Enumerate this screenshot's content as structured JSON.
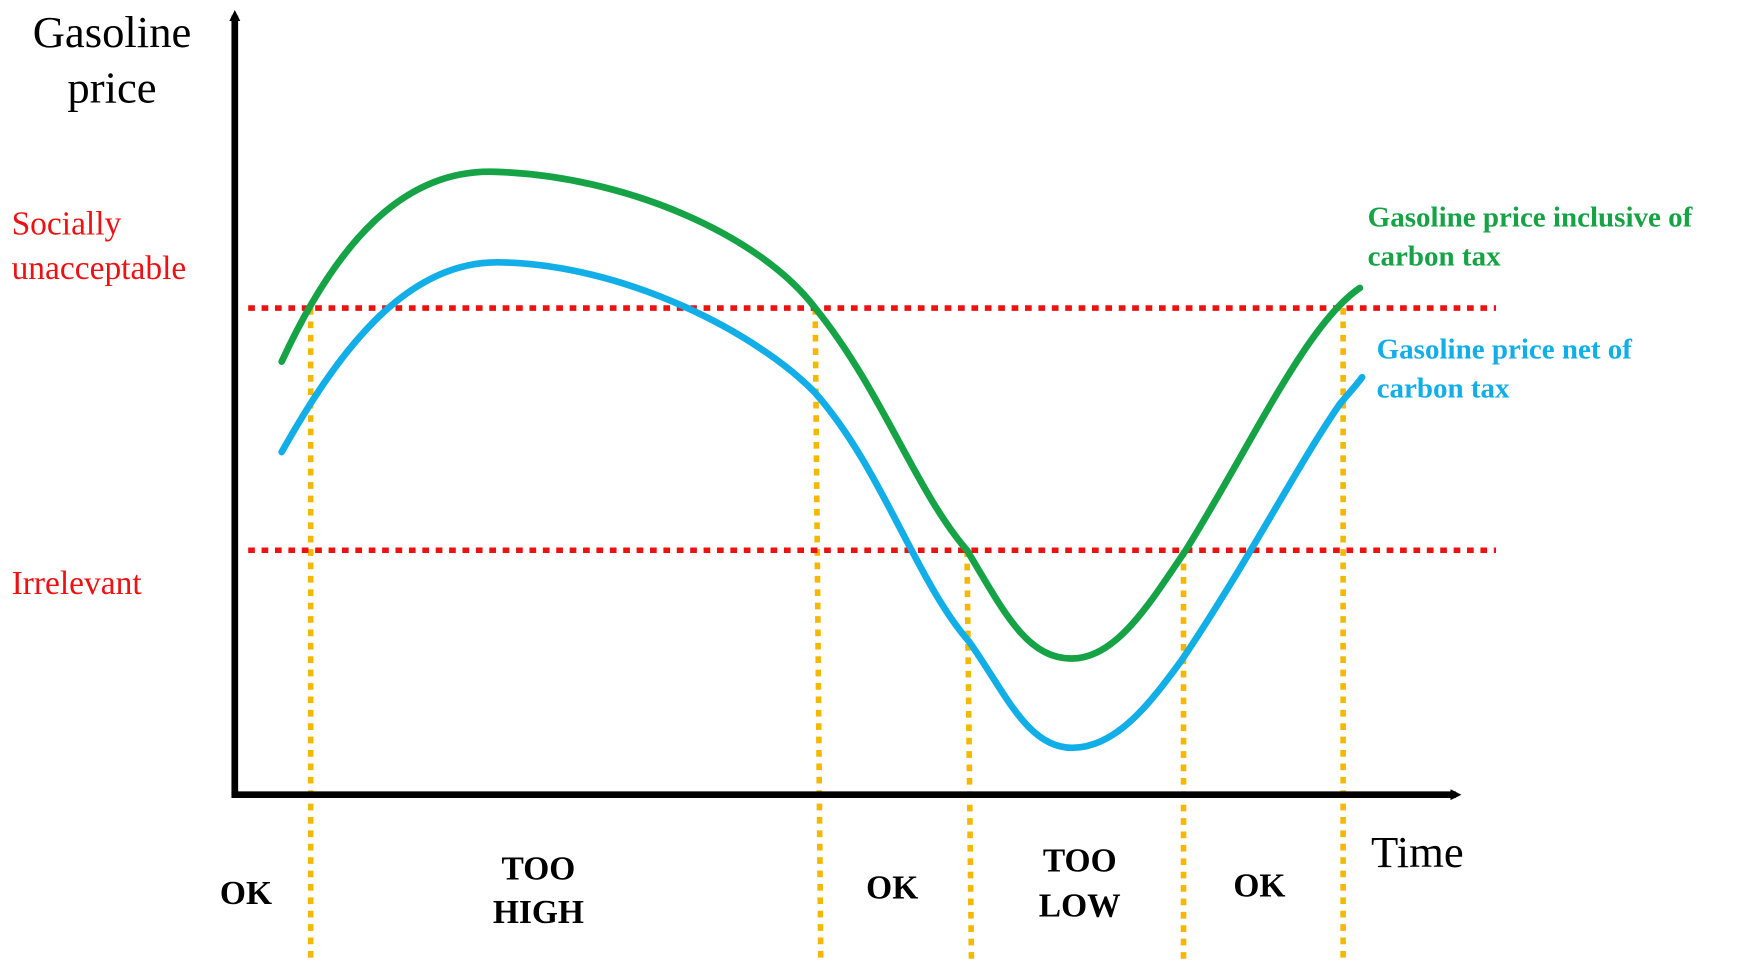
{
  "axes": {
    "y_label": [
      "Gasoline",
      "price"
    ],
    "x_label": "Time"
  },
  "levels": [
    {
      "label": [
        "Socially",
        "unacceptable"
      ]
    },
    {
      "label": [
        "Irrelevant"
      ]
    }
  ],
  "curves": [
    {
      "label": [
        "Gasoline price inclusive of",
        "carbon tax"
      ]
    },
    {
      "label": [
        "Gasoline price net of",
        "carbon tax"
      ]
    }
  ],
  "regions": [
    {
      "label": [
        "OK"
      ]
    },
    {
      "label": [
        "TOO",
        "HIGH"
      ]
    },
    {
      "label": [
        "OK"
      ]
    },
    {
      "label": [
        "TOO",
        "LOW"
      ]
    },
    {
      "label": [
        "OK"
      ]
    }
  ]
}
